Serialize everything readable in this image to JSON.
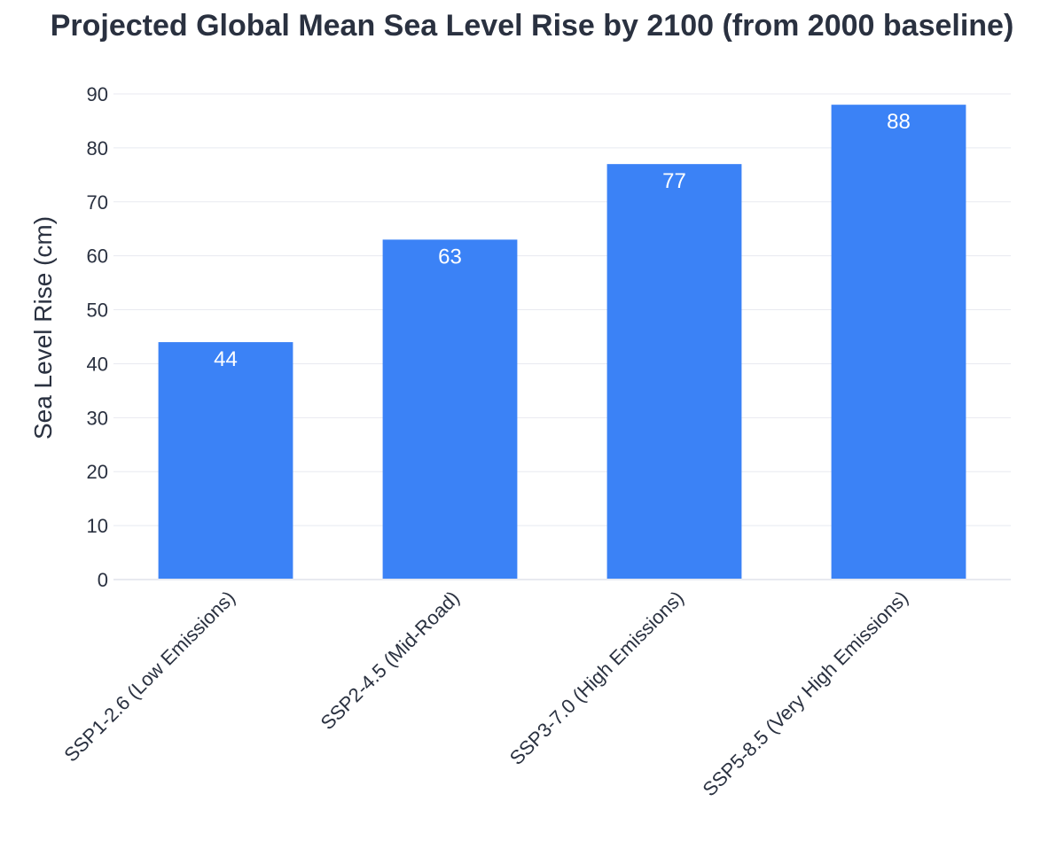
{
  "chart_data": {
    "type": "bar",
    "title": "Projected Global Mean Sea Level Rise by 2100 (from 2000 baseline)",
    "xlabel": "",
    "ylabel": "Sea Level Rise (cm)",
    "categories": [
      "SSP1-2.6 (Low Emissions)",
      "SSP2-4.5 (Mid-Road)",
      "SSP3-7.0 (High Emissions)",
      "SSP5-8.5 (Very High Emissions)"
    ],
    "values": [
      44,
      63,
      77,
      88
    ],
    "data_labels": [
      "44",
      "63",
      "77",
      "88"
    ],
    "ylim": [
      0,
      90
    ],
    "yticks": [
      0,
      10,
      20,
      30,
      40,
      50,
      60,
      70,
      80,
      90
    ],
    "grid": true,
    "legend": "none",
    "bar_color": "#3b82f6",
    "label_color": "#ffffff",
    "text_color": "#2a3140",
    "grid_color": "#e8eaf0"
  }
}
